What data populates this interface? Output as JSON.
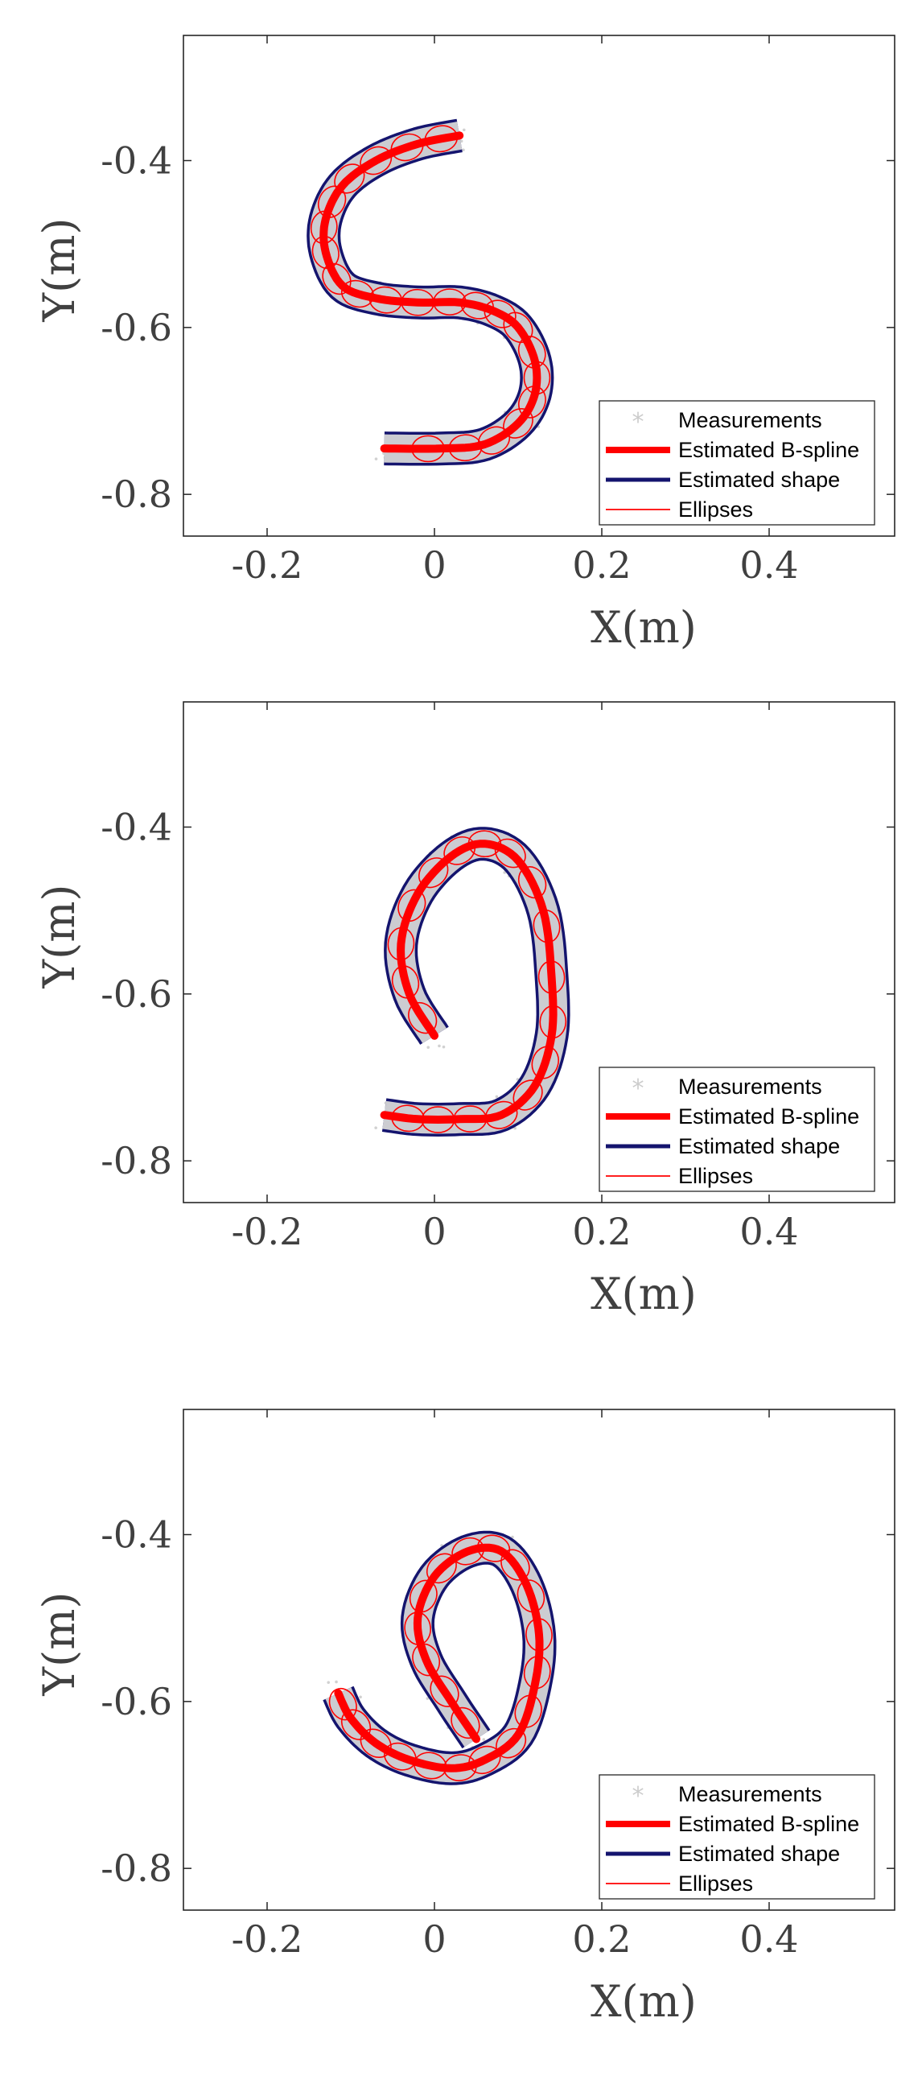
{
  "legend_labels": {
    "measurements": "Measurements",
    "bspline": "Estimated B-spline",
    "shape": "Estimated shape",
    "ellipses": "Ellipses"
  },
  "colors": {
    "measurements": "#cccccc",
    "bspline": "#ff0000",
    "shape": "#14146e",
    "ellipses": "#ff0000",
    "axes": "#262626",
    "text": "#404040"
  },
  "chart_data": [
    {
      "type": "line",
      "title": "",
      "xlabel": "X(m)",
      "ylabel": "Y(m)",
      "xlim": [
        -0.3,
        0.55
      ],
      "ylim": [
        -0.85,
        -0.25
      ],
      "xticks": [
        -0.2,
        0,
        0.2,
        0.4
      ],
      "xtick_labels": [
        "-0.2",
        "0",
        "0.2",
        "0.4"
      ],
      "yticks": [
        -0.4,
        -0.6,
        -0.8
      ],
      "ytick_labels": [
        "-0.4",
        "-0.6",
        "-0.8"
      ],
      "grid": false,
      "legend_position": "bottom-right",
      "centerline": [
        [
          0.03,
          -0.37
        ],
        [
          -0.02,
          -0.38
        ],
        [
          -0.07,
          -0.4
        ],
        [
          -0.11,
          -0.43
        ],
        [
          -0.13,
          -0.47
        ],
        [
          -0.13,
          -0.51
        ],
        [
          -0.11,
          -0.55
        ],
        [
          -0.07,
          -0.565
        ],
        [
          -0.02,
          -0.57
        ],
        [
          0.03,
          -0.57
        ],
        [
          0.07,
          -0.58
        ],
        [
          0.1,
          -0.6
        ],
        [
          0.12,
          -0.64
        ],
        [
          0.12,
          -0.68
        ],
        [
          0.1,
          -0.715
        ],
        [
          0.06,
          -0.74
        ],
        [
          0.01,
          -0.745
        ],
        [
          -0.06,
          -0.745
        ]
      ]
    },
    {
      "type": "line",
      "title": "",
      "xlabel": "X(m)",
      "ylabel": "Y(m)",
      "xlim": [
        -0.3,
        0.55
      ],
      "ylim": [
        -0.85,
        -0.25
      ],
      "xticks": [
        -0.2,
        0,
        0.2,
        0.4
      ],
      "xtick_labels": [
        "-0.2",
        "0",
        "0.2",
        "0.4"
      ],
      "yticks": [
        -0.4,
        -0.6,
        -0.8
      ],
      "ytick_labels": [
        "-0.4",
        "-0.6",
        "-0.8"
      ],
      "grid": false,
      "legend_position": "bottom-right",
      "centerline": [
        [
          0.0,
          -0.65
        ],
        [
          -0.03,
          -0.6
        ],
        [
          -0.04,
          -0.54
        ],
        [
          -0.02,
          -0.48
        ],
        [
          0.02,
          -0.435
        ],
        [
          0.06,
          -0.42
        ],
        [
          0.1,
          -0.44
        ],
        [
          0.13,
          -0.5
        ],
        [
          0.14,
          -0.58
        ],
        [
          0.14,
          -0.65
        ],
        [
          0.12,
          -0.71
        ],
        [
          0.08,
          -0.745
        ],
        [
          0.03,
          -0.75
        ],
        [
          -0.02,
          -0.75
        ],
        [
          -0.06,
          -0.745
        ]
      ]
    },
    {
      "type": "line",
      "title": "",
      "xlabel": "X(m)",
      "ylabel": "Y(m)",
      "xlim": [
        -0.3,
        0.55
      ],
      "ylim": [
        -0.85,
        -0.25
      ],
      "xticks": [
        -0.2,
        0,
        0.2,
        0.4
      ],
      "xtick_labels": [
        "-0.2",
        "0",
        "0.2",
        "0.4"
      ],
      "yticks": [
        -0.4,
        -0.6,
        -0.8
      ],
      "ytick_labels": [
        "-0.4",
        "-0.6",
        "-0.8"
      ],
      "grid": false,
      "legend_position": "bottom-right",
      "centerline": [
        [
          0.05,
          -0.645
        ],
        [
          0.02,
          -0.6
        ],
        [
          -0.01,
          -0.55
        ],
        [
          -0.02,
          -0.5
        ],
        [
          0.0,
          -0.45
        ],
        [
          0.04,
          -0.42
        ],
        [
          0.08,
          -0.42
        ],
        [
          0.11,
          -0.46
        ],
        [
          0.125,
          -0.52
        ],
        [
          0.12,
          -0.58
        ],
        [
          0.1,
          -0.64
        ],
        [
          0.06,
          -0.67
        ],
        [
          0.02,
          -0.68
        ],
        [
          -0.03,
          -0.67
        ],
        [
          -0.07,
          -0.65
        ],
        [
          -0.1,
          -0.62
        ],
        [
          -0.115,
          -0.59
        ]
      ]
    }
  ]
}
